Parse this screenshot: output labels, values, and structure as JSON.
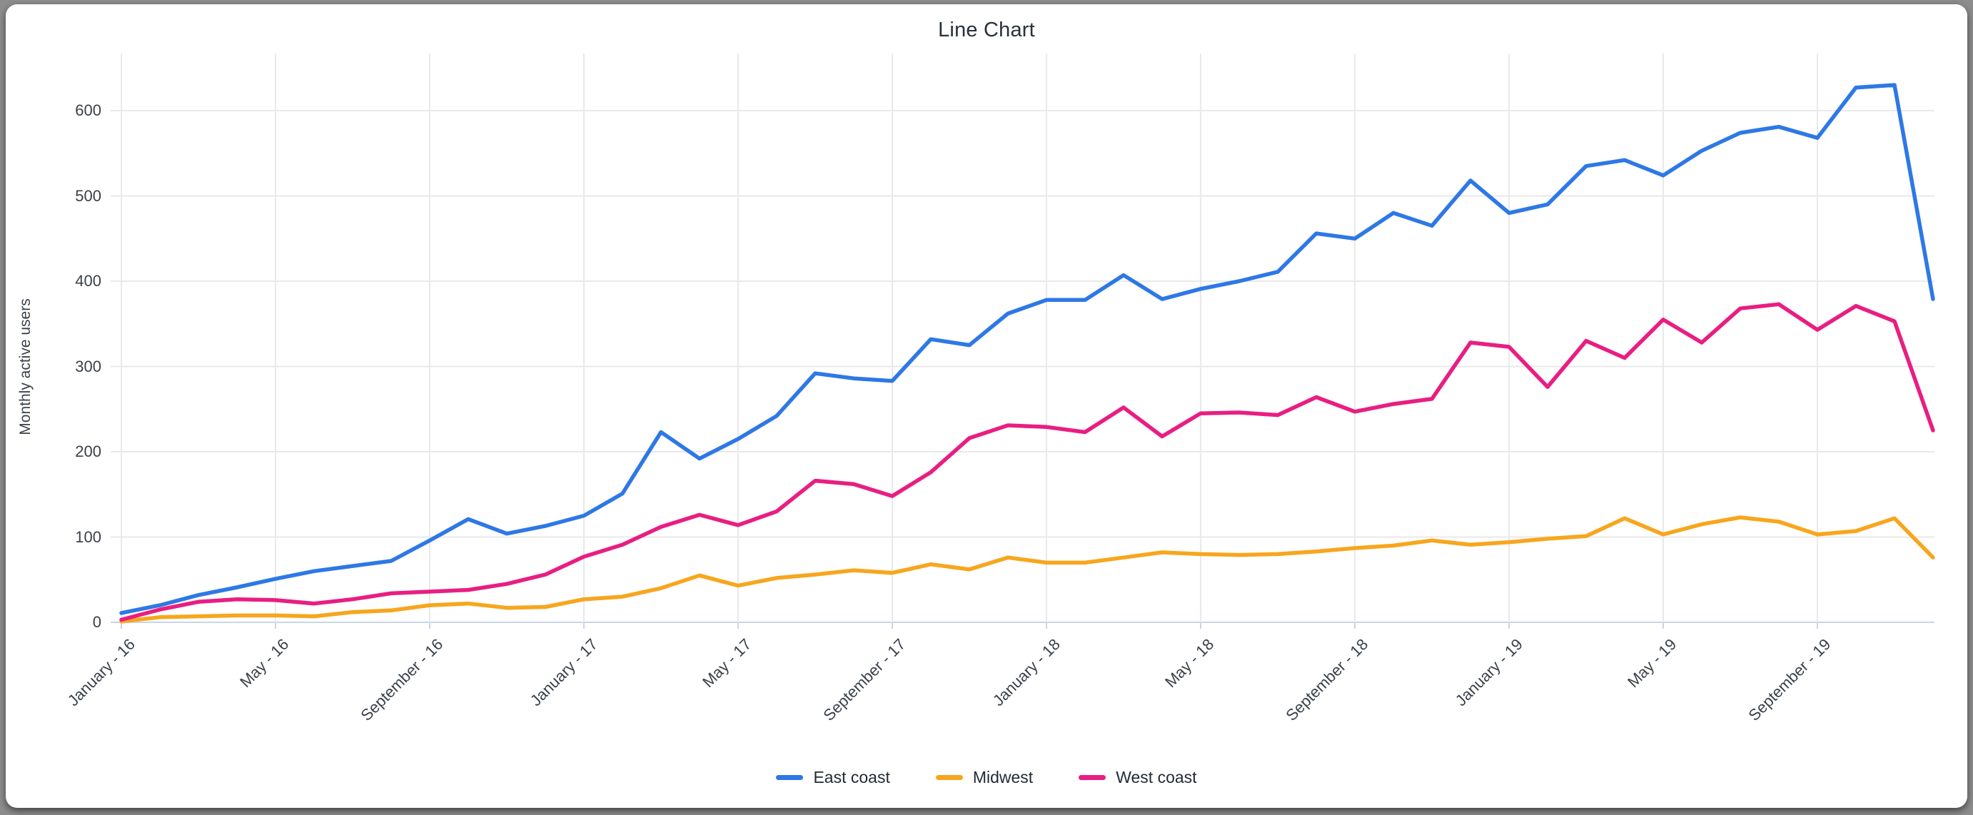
{
  "window": {
    "title": "Line Chart"
  },
  "chart": {
    "title": "Line Chart",
    "y_axis": {
      "title": "Monthly active users",
      "ticks": [
        0,
        100,
        200,
        300,
        400,
        500,
        600
      ]
    },
    "x_axis": {
      "tick_labels": [
        "January - 16",
        "May - 16",
        "September - 16",
        "January - 17",
        "May - 17",
        "September - 17",
        "January - 18",
        "May - 18",
        "September - 18",
        "January - 19",
        "May - 19",
        "September - 19"
      ],
      "months_per_tick": 4
    },
    "legend": {
      "position": "bottom",
      "items": [
        {
          "label": "East coast",
          "color": "#2E78E6"
        },
        {
          "label": "Midwest",
          "color": "#F7A61D"
        },
        {
          "label": "West coast",
          "color": "#E81E82"
        }
      ]
    }
  },
  "chart_data": {
    "type": "line",
    "title": "Line Chart",
    "xlabel": "",
    "ylabel": "Monthly active users",
    "ylim": [
      0,
      650
    ],
    "grid": true,
    "legend_position": "bottom",
    "x_tick_labels": [
      "January - 16",
      "May - 16",
      "September - 16",
      "January - 17",
      "May - 17",
      "September - 17",
      "January - 18",
      "May - 18",
      "September - 18",
      "January - 19",
      "May - 19",
      "September - 19"
    ],
    "points_per_series": 48,
    "x_frequency": "monthly",
    "series": [
      {
        "name": "East coast",
        "color": "#2E78E6",
        "values": [
          11,
          20,
          32,
          41,
          51,
          60,
          66,
          72,
          96,
          121,
          104,
          113,
          125,
          151,
          223,
          192,
          215,
          242,
          292,
          286,
          283,
          332,
          325,
          362,
          378,
          378,
          407,
          379,
          391,
          400,
          411,
          456,
          450,
          480,
          465,
          518,
          480,
          490,
          535,
          542,
          524,
          553,
          574,
          581,
          568,
          627,
          630,
          379
        ]
      },
      {
        "name": "Midwest",
        "color": "#F7A61D",
        "values": [
          1,
          6,
          7,
          8,
          8,
          7,
          12,
          14,
          20,
          22,
          17,
          18,
          27,
          30,
          40,
          55,
          43,
          52,
          56,
          61,
          58,
          68,
          62,
          76,
          70,
          70,
          76,
          82,
          80,
          79,
          80,
          83,
          87,
          90,
          96,
          91,
          94,
          98,
          101,
          122,
          103,
          115,
          123,
          118,
          103,
          107,
          122,
          76
        ]
      },
      {
        "name": "West coast",
        "color": "#E81E82",
        "values": [
          3,
          15,
          24,
          27,
          26,
          22,
          27,
          34,
          36,
          38,
          45,
          56,
          77,
          91,
          112,
          126,
          114,
          130,
          166,
          162,
          148,
          176,
          216,
          231,
          229,
          223,
          252,
          218,
          245,
          246,
          243,
          264,
          247,
          256,
          262,
          328,
          323,
          276,
          330,
          310,
          355,
          328,
          368,
          373,
          343,
          371,
          353,
          225
        ]
      }
    ]
  },
  "style": {
    "grid_color": "#e9e9e9",
    "baseline_color": "#c9d4ec",
    "tick_stub_color": "#c9d4ec",
    "background": "#ffffff"
  }
}
